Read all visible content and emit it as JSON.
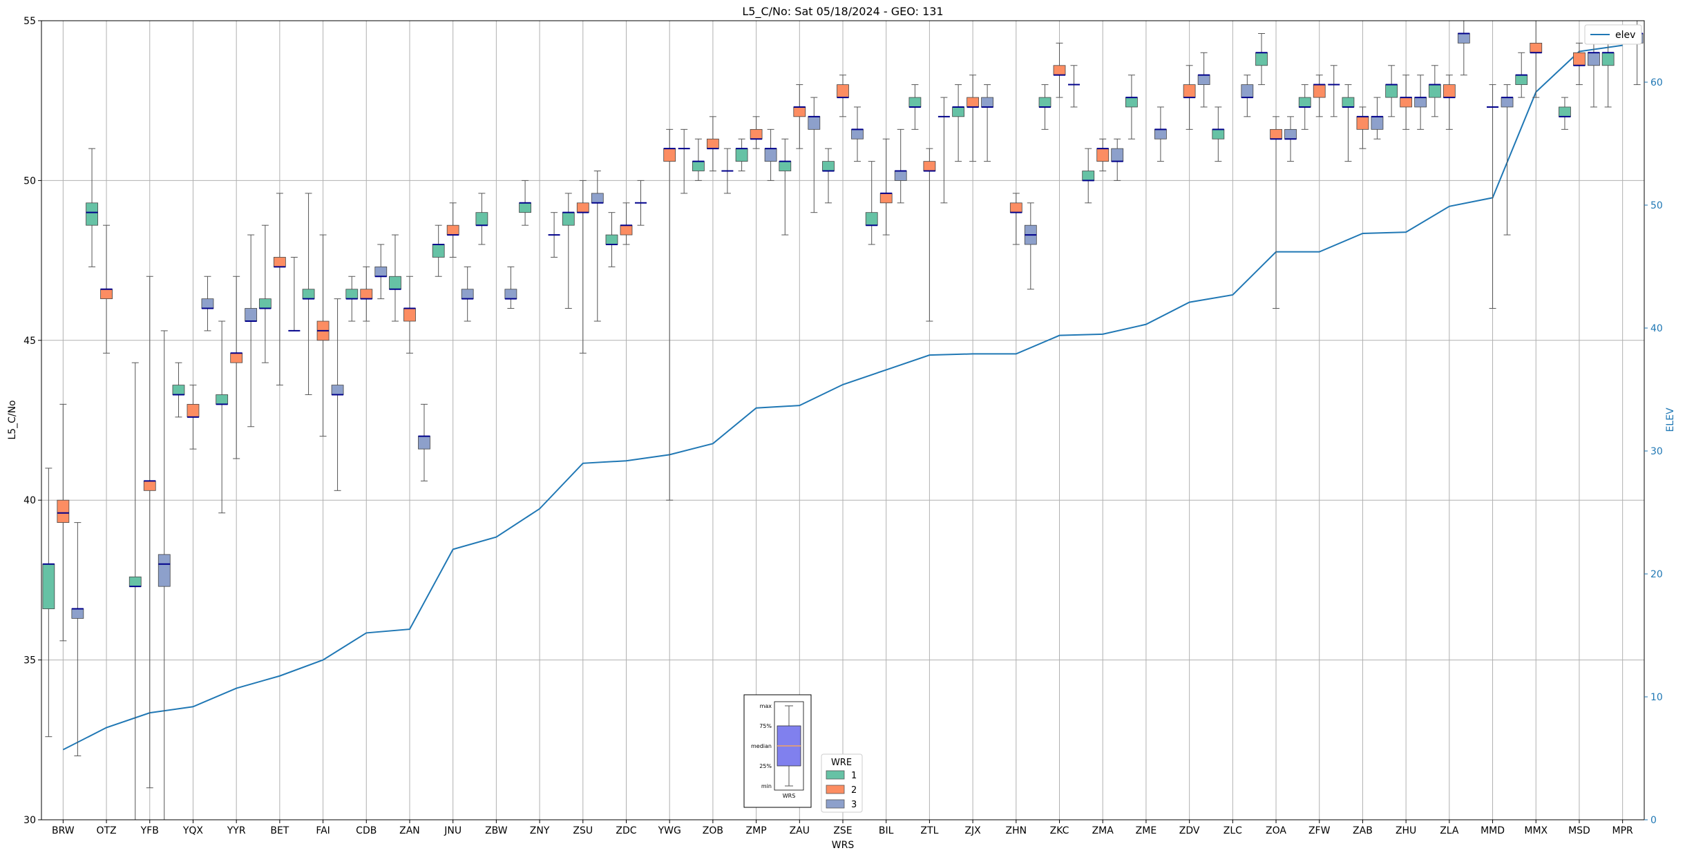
{
  "chart_data": {
    "type": "box",
    "title": "L5_C/No: Sat 05/18/2024 - GEO: 131",
    "xlabel": "WRS",
    "ylabel": "L5_C/No",
    "y2label": "ELEV",
    "ylim": [
      30,
      55
    ],
    "y2lim": [
      0,
      65
    ],
    "yticks": [
      30,
      35,
      40,
      45,
      50,
      55
    ],
    "y2ticks": [
      0,
      10,
      20,
      30,
      40,
      50,
      60
    ],
    "grid": true,
    "colors": {
      "wre1": "#66c2a5",
      "wre2": "#fc8d62",
      "wre3": "#8da0cb",
      "median": "#00008b",
      "elev": "#1f77b4"
    },
    "categories": [
      "BRW",
      "OTZ",
      "YFB",
      "YQX",
      "YYR",
      "BET",
      "FAI",
      "CDB",
      "ZAN",
      "JNU",
      "ZBW",
      "ZNY",
      "ZSU",
      "ZDC",
      "YWG",
      "ZOB",
      "ZMP",
      "ZAU",
      "ZSE",
      "BIL",
      "ZTL",
      "ZJX",
      "ZHN",
      "ZKC",
      "ZMA",
      "ZME",
      "ZDV",
      "ZLC",
      "ZOA",
      "ZFW",
      "ZAB",
      "ZHU",
      "ZLA",
      "MMD",
      "MMX",
      "MSD",
      "MPR"
    ],
    "series": [
      {
        "name": "1",
        "boxes": [
          {
            "min": 32.6,
            "q1": 36.6,
            "median": 38.0,
            "q3": 38.0,
            "max": 41.0
          },
          {
            "min": 47.3,
            "q1": 48.6,
            "median": 49.0,
            "q3": 49.3,
            "max": 51.0
          },
          {
            "min": 30.0,
            "q1": 37.3,
            "median": 37.3,
            "q3": 37.6,
            "max": 44.3
          },
          {
            "min": 42.6,
            "q1": 43.3,
            "median": 43.3,
            "q3": 43.6,
            "max": 44.3
          },
          {
            "min": 39.6,
            "q1": 43.0,
            "median": 43.0,
            "q3": 43.3,
            "max": 45.6
          },
          {
            "min": 44.3,
            "q1": 46.0,
            "median": 46.0,
            "q3": 46.3,
            "max": 48.6
          },
          {
            "min": 43.3,
            "q1": 46.3,
            "median": 46.3,
            "q3": 46.6,
            "max": 49.6
          },
          {
            "min": 45.6,
            "q1": 46.3,
            "median": 46.3,
            "q3": 46.6,
            "max": 47.0
          },
          {
            "min": 45.6,
            "q1": 46.6,
            "median": 46.6,
            "q3": 47.0,
            "max": 48.3
          },
          {
            "min": 47.0,
            "q1": 47.6,
            "median": 48.0,
            "q3": 48.0,
            "max": 48.6
          },
          {
            "min": 48.0,
            "q1": 48.6,
            "median": 48.6,
            "q3": 49.0,
            "max": 49.6
          },
          {
            "min": 48.6,
            "q1": 49.0,
            "median": 49.3,
            "q3": 49.3,
            "max": 50.0
          },
          {
            "min": 46.0,
            "q1": 48.6,
            "median": 49.0,
            "q3": 49.0,
            "max": 49.6
          },
          {
            "min": 47.3,
            "q1": 48.0,
            "median": 48.0,
            "q3": 48.3,
            "max": 49.0
          },
          null,
          {
            "min": 50.0,
            "q1": 50.3,
            "median": 50.6,
            "q3": 50.6,
            "max": 51.3
          },
          {
            "min": 50.3,
            "q1": 50.6,
            "median": 51.0,
            "q3": 51.0,
            "max": 51.3
          },
          {
            "min": 48.3,
            "q1": 50.3,
            "median": 50.6,
            "q3": 50.6,
            "max": 51.3
          },
          {
            "min": 49.3,
            "q1": 50.3,
            "median": 50.3,
            "q3": 50.6,
            "max": 51.0
          },
          {
            "min": 48.0,
            "q1": 48.6,
            "median": 48.6,
            "q3": 49.0,
            "max": 50.6
          },
          {
            "min": 51.6,
            "q1": 52.3,
            "median": 52.3,
            "q3": 52.6,
            "max": 53.0
          },
          {
            "min": 50.6,
            "q1": 52.0,
            "median": 52.3,
            "q3": 52.3,
            "max": 53.0
          },
          null,
          {
            "min": 51.6,
            "q1": 52.3,
            "median": 52.3,
            "q3": 52.6,
            "max": 53.0
          },
          {
            "min": 49.3,
            "q1": 50.0,
            "median": 50.0,
            "q3": 50.3,
            "max": 51.0
          },
          {
            "min": 51.3,
            "q1": 52.3,
            "median": 52.6,
            "q3": 52.6,
            "max": 53.3
          },
          null,
          {
            "min": 50.6,
            "q1": 51.3,
            "median": 51.6,
            "q3": 51.6,
            "max": 52.3
          },
          {
            "min": 53.0,
            "q1": 53.6,
            "median": 54.0,
            "q3": 54.0,
            "max": 54.6
          },
          {
            "min": 51.6,
            "q1": 52.3,
            "median": 52.3,
            "q3": 52.6,
            "max": 53.0
          },
          {
            "min": 50.6,
            "q1": 52.3,
            "median": 52.3,
            "q3": 52.6,
            "max": 53.0
          },
          {
            "min": 52.0,
            "q1": 52.6,
            "median": 53.0,
            "q3": 53.0,
            "max": 53.6
          },
          {
            "min": 52.0,
            "q1": 52.6,
            "median": 53.0,
            "q3": 53.0,
            "max": 53.6
          },
          null,
          {
            "min": 52.6,
            "q1": 53.0,
            "median": 53.3,
            "q3": 53.3,
            "max": 54.0
          },
          {
            "min": 51.6,
            "q1": 52.0,
            "median": 52.0,
            "q3": 52.3,
            "max": 52.6
          },
          {
            "min": 52.3,
            "q1": 53.6,
            "median": 54.0,
            "q3": 54.0,
            "max": 54.3
          }
        ]
      },
      {
        "name": "2",
        "boxes": [
          {
            "min": 35.6,
            "q1": 39.3,
            "median": 39.6,
            "q3": 40.0,
            "max": 43.0
          },
          {
            "min": 44.6,
            "q1": 46.3,
            "median": 46.6,
            "q3": 46.6,
            "max": 48.6
          },
          {
            "min": 31.0,
            "q1": 40.3,
            "median": 40.6,
            "q3": 40.6,
            "max": 47.0
          },
          {
            "min": 41.6,
            "q1": 42.6,
            "median": 42.6,
            "q3": 43.0,
            "max": 43.6
          },
          {
            "min": 41.3,
            "q1": 44.3,
            "median": 44.6,
            "q3": 44.6,
            "max": 47.0
          },
          {
            "min": 43.6,
            "q1": 47.3,
            "median": 47.3,
            "q3": 47.6,
            "max": 49.6
          },
          {
            "min": 42.0,
            "q1": 45.0,
            "median": 45.3,
            "q3": 45.6,
            "max": 48.3
          },
          {
            "min": 45.6,
            "q1": 46.3,
            "median": 46.3,
            "q3": 46.6,
            "max": 47.3
          },
          {
            "min": 44.6,
            "q1": 45.6,
            "median": 46.0,
            "q3": 46.0,
            "max": 47.0
          },
          {
            "min": 47.6,
            "q1": 48.3,
            "median": 48.3,
            "q3": 48.6,
            "max": 49.3
          },
          null,
          null,
          {
            "min": 44.6,
            "q1": 49.0,
            "median": 49.0,
            "q3": 49.3,
            "max": 50.0
          },
          {
            "min": 48.0,
            "q1": 48.3,
            "median": 48.6,
            "q3": 48.6,
            "max": 49.3
          },
          {
            "min": 40.0,
            "q1": 50.6,
            "median": 51.0,
            "q3": 51.0,
            "max": 51.6
          },
          {
            "min": 50.3,
            "q1": 51.0,
            "median": 51.0,
            "q3": 51.3,
            "max": 52.0
          },
          {
            "min": 51.0,
            "q1": 51.3,
            "median": 51.3,
            "q3": 51.6,
            "max": 52.0
          },
          {
            "min": 51.0,
            "q1": 52.0,
            "median": 52.3,
            "q3": 52.3,
            "max": 53.0
          },
          {
            "min": 52.0,
            "q1": 52.6,
            "median": 52.6,
            "q3": 53.0,
            "max": 53.3
          },
          {
            "min": 48.3,
            "q1": 49.3,
            "median": 49.6,
            "q3": 49.6,
            "max": 51.3
          },
          {
            "min": 45.6,
            "q1": 50.3,
            "median": 50.3,
            "q3": 50.6,
            "max": 51.0
          },
          {
            "min": 50.6,
            "q1": 52.3,
            "median": 52.3,
            "q3": 52.6,
            "max": 53.3
          },
          {
            "min": 48.0,
            "q1": 49.0,
            "median": 49.0,
            "q3": 49.3,
            "max": 49.6
          },
          {
            "min": 52.6,
            "q1": 53.3,
            "median": 53.3,
            "q3": 53.6,
            "max": 54.3
          },
          {
            "min": 50.3,
            "q1": 50.6,
            "median": 51.0,
            "q3": 51.0,
            "max": 51.3
          },
          null,
          {
            "min": 51.6,
            "q1": 52.6,
            "median": 52.6,
            "q3": 53.0,
            "max": 53.6
          },
          null,
          {
            "min": 46.0,
            "q1": 51.3,
            "median": 51.3,
            "q3": 51.6,
            "max": 52.0
          },
          {
            "min": 52.0,
            "q1": 52.6,
            "median": 53.0,
            "q3": 53.0,
            "max": 53.3
          },
          {
            "min": 51.0,
            "q1": 51.6,
            "median": 52.0,
            "q3": 52.0,
            "max": 52.3
          },
          {
            "min": 51.6,
            "q1": 52.3,
            "median": 52.6,
            "q3": 52.6,
            "max": 53.3
          },
          {
            "min": 51.6,
            "q1": 52.6,
            "median": 52.6,
            "q3": 53.0,
            "max": 53.3
          },
          {
            "min": 46.0,
            "q1": 52.3,
            "median": 52.3,
            "q3": 52.3,
            "max": 53.0
          },
          {
            "min": 52.6,
            "q1": 54.0,
            "median": 54.0,
            "q3": 54.3,
            "max": 55.0
          },
          {
            "min": 53.0,
            "q1": 53.6,
            "median": 53.6,
            "q3": 54.0,
            "max": 54.3
          },
          null
        ]
      },
      {
        "name": "3",
        "boxes": [
          {
            "min": 32.0,
            "q1": 36.3,
            "median": 36.6,
            "q3": 36.6,
            "max": 39.3
          },
          null,
          {
            "min": 30.0,
            "q1": 37.3,
            "median": 38.0,
            "q3": 38.3,
            "max": 45.3
          },
          {
            "min": 45.3,
            "q1": 46.0,
            "median": 46.0,
            "q3": 46.3,
            "max": 47.0
          },
          {
            "min": 42.3,
            "q1": 45.6,
            "median": 45.6,
            "q3": 46.0,
            "max": 48.3
          },
          {
            "min": 45.3,
            "q1": 45.3,
            "median": 45.3,
            "q3": 45.3,
            "max": 47.6
          },
          {
            "min": 40.3,
            "q1": 43.3,
            "median": 43.3,
            "q3": 43.6,
            "max": 46.3
          },
          {
            "min": 46.3,
            "q1": 47.0,
            "median": 47.0,
            "q3": 47.3,
            "max": 48.0
          },
          {
            "min": 40.6,
            "q1": 41.6,
            "median": 42.0,
            "q3": 42.0,
            "max": 43.0
          },
          {
            "min": 45.6,
            "q1": 46.3,
            "median": 46.3,
            "q3": 46.6,
            "max": 47.3
          },
          {
            "min": 46.0,
            "q1": 46.3,
            "median": 46.3,
            "q3": 46.6,
            "max": 47.3
          },
          {
            "min": 47.6,
            "q1": 48.3,
            "median": 48.3,
            "q3": 48.3,
            "max": 49.0
          },
          {
            "min": 45.6,
            "q1": 49.3,
            "median": 49.3,
            "q3": 49.6,
            "max": 50.3
          },
          {
            "min": 48.6,
            "q1": 49.3,
            "median": 49.3,
            "q3": 49.3,
            "max": 50.0
          },
          {
            "min": 49.6,
            "q1": 51.0,
            "median": 51.0,
            "q3": 51.0,
            "max": 51.6
          },
          {
            "min": 49.6,
            "q1": 50.3,
            "median": 50.3,
            "q3": 50.3,
            "max": 51.0
          },
          {
            "min": 50.0,
            "q1": 50.6,
            "median": 51.0,
            "q3": 51.0,
            "max": 51.6
          },
          {
            "min": 49.0,
            "q1": 51.6,
            "median": 52.0,
            "q3": 52.0,
            "max": 52.6
          },
          {
            "min": 50.6,
            "q1": 51.3,
            "median": 51.6,
            "q3": 51.6,
            "max": 52.3
          },
          {
            "min": 49.3,
            "q1": 50.0,
            "median": 50.3,
            "q3": 50.3,
            "max": 51.6
          },
          {
            "min": 49.3,
            "q1": 52.0,
            "median": 52.0,
            "q3": 52.0,
            "max": 52.6
          },
          {
            "min": 50.6,
            "q1": 52.3,
            "median": 52.3,
            "q3": 52.6,
            "max": 53.0
          },
          {
            "min": 46.6,
            "q1": 48.0,
            "median": 48.3,
            "q3": 48.6,
            "max": 49.3
          },
          {
            "min": 52.3,
            "q1": 53.0,
            "median": 53.0,
            "q3": 53.0,
            "max": 53.6
          },
          {
            "min": 50.0,
            "q1": 50.6,
            "median": 50.6,
            "q3": 51.0,
            "max": 51.3
          },
          {
            "min": 50.6,
            "q1": 51.3,
            "median": 51.6,
            "q3": 51.6,
            "max": 52.3
          },
          {
            "min": 52.3,
            "q1": 53.0,
            "median": 53.3,
            "q3": 53.3,
            "max": 54.0
          },
          {
            "min": 52.0,
            "q1": 52.6,
            "median": 52.6,
            "q3": 53.0,
            "max": 53.3
          },
          {
            "min": 50.6,
            "q1": 51.3,
            "median": 51.3,
            "q3": 51.6,
            "max": 52.0
          },
          {
            "min": 52.0,
            "q1": 53.0,
            "median": 53.0,
            "q3": 53.0,
            "max": 53.6
          },
          {
            "min": 51.3,
            "q1": 51.6,
            "median": 52.0,
            "q3": 52.0,
            "max": 52.6
          },
          {
            "min": 51.6,
            "q1": 52.3,
            "median": 52.6,
            "q3": 52.6,
            "max": 53.3
          },
          {
            "min": 53.3,
            "q1": 54.3,
            "median": 54.6,
            "q3": 54.6,
            "max": 55.0
          },
          {
            "min": 48.3,
            "q1": 52.3,
            "median": 52.6,
            "q3": 52.6,
            "max": 53.0
          },
          null,
          {
            "min": 52.3,
            "q1": 53.6,
            "median": 54.0,
            "q3": 54.0,
            "max": 54.6
          },
          {
            "min": 53.0,
            "q1": 54.3,
            "median": 54.6,
            "q3": 54.6,
            "max": 55.0
          }
        ]
      }
    ],
    "elev": {
      "name": "elev",
      "values": [
        5.7,
        7.5,
        8.7,
        9.2,
        10.7,
        11.7,
        13.0,
        15.2,
        15.5,
        22.0,
        23.0,
        25.3,
        29.0,
        29.2,
        29.7,
        30.6,
        33.5,
        33.7,
        35.4,
        36.6,
        37.8,
        37.9,
        37.9,
        39.4,
        39.5,
        40.3,
        42.1,
        42.7,
        46.2,
        46.2,
        47.7,
        47.8,
        49.9,
        50.6,
        59.2,
        62.5,
        63.0
      ]
    },
    "legend_wre": {
      "title": "WRE",
      "entries": [
        "1",
        "2",
        "3"
      ]
    },
    "legend_elev": {
      "entries": [
        "elev"
      ],
      "placement": "top-right"
    },
    "inset_key": {
      "labels": [
        "max",
        "75%",
        "median",
        "25%",
        "min"
      ],
      "xlabel": "WRS",
      "color": "#8080ee",
      "median_color": "#f4a460"
    }
  }
}
